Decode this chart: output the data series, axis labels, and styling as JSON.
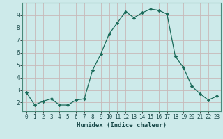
{
  "x": [
    0,
    1,
    2,
    3,
    4,
    5,
    6,
    7,
    8,
    9,
    10,
    11,
    12,
    13,
    14,
    15,
    16,
    17,
    18,
    19,
    20,
    21,
    22,
    23
  ],
  "y": [
    2.8,
    1.8,
    2.1,
    2.3,
    1.8,
    1.8,
    2.2,
    2.3,
    4.6,
    5.9,
    7.5,
    8.4,
    9.3,
    8.8,
    9.2,
    9.5,
    9.4,
    9.1,
    5.7,
    4.8,
    3.3,
    2.7,
    2.2,
    2.5
  ],
  "xlabel": "Humidex (Indice chaleur)",
  "line_color": "#1a6b5a",
  "marker_color": "#1a6b5a",
  "bg_color": "#cdeaea",
  "grid_color": "#c8b8b8",
  "xlim": [
    -0.5,
    23.5
  ],
  "ylim": [
    1.3,
    10.0
  ],
  "yticks": [
    2,
    3,
    4,
    5,
    6,
    7,
    8,
    9
  ],
  "xticks": [
    0,
    1,
    2,
    3,
    4,
    5,
    6,
    7,
    8,
    9,
    10,
    11,
    12,
    13,
    14,
    15,
    16,
    17,
    18,
    19,
    20,
    21,
    22,
    23
  ],
  "xlabel_fontsize": 6.5,
  "tick_fontsize": 5.5
}
